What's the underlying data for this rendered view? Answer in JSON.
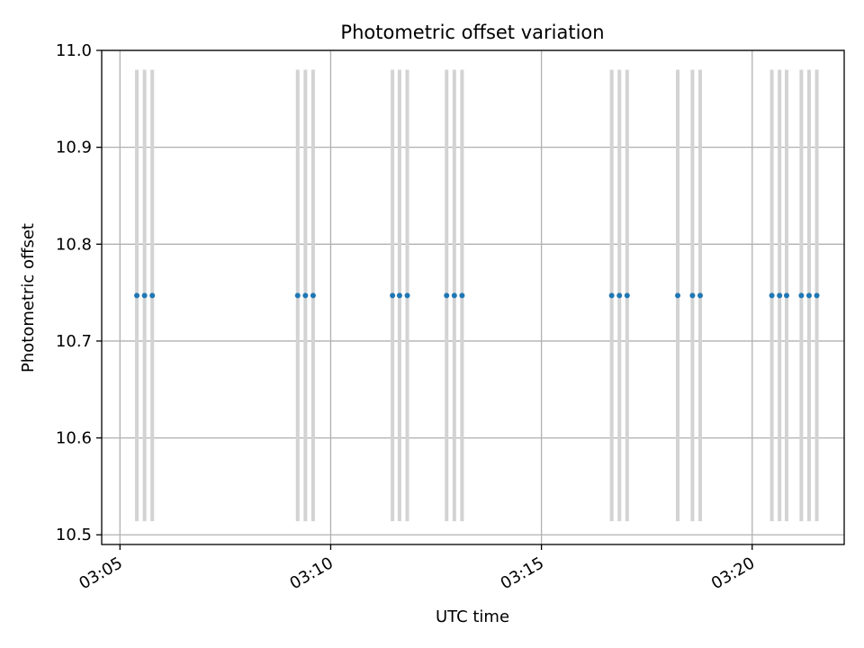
{
  "chart_data": {
    "type": "scatter",
    "title": "Photometric offset variation",
    "xlabel": "UTC time",
    "ylabel": "Photometric offset",
    "ylim": [
      10.49,
      11.0
    ],
    "xlim": [
      "03:04:34",
      "03:22:11"
    ],
    "grid": true,
    "x_ticks": [
      "03:05",
      "03:10",
      "03:15",
      "03:20"
    ],
    "y_ticks": [
      "10.5",
      "10.6",
      "10.7",
      "10.8",
      "10.9",
      "11.0"
    ],
    "marker_color": "#1f77b4",
    "band_color": "#d3d3d3",
    "series": [
      {
        "x": [
          "03:05:24",
          "03:05:35",
          "03:05:46",
          "03:09:13",
          "03:09:24",
          "03:09:35",
          "03:11:28",
          "03:11:38",
          "03:11:49",
          "03:12:45",
          "03:12:56",
          "03:13:07",
          "03:16:40",
          "03:16:51",
          "03:17:02",
          "03:18:14",
          "03:18:35",
          "03:18:46",
          "03:20:28",
          "03:20:39",
          "03:20:49",
          "03:21:10",
          "03:21:21",
          "03:21:32"
        ],
        "y": [
          10.747,
          10.747,
          10.747,
          10.747,
          10.747,
          10.747,
          10.747,
          10.747,
          10.747,
          10.747,
          10.747,
          10.747,
          10.747,
          10.747,
          10.747,
          10.747,
          10.747,
          10.747,
          10.747,
          10.747,
          10.747,
          10.747,
          10.747,
          10.747
        ],
        "yerr": 0.233
      }
    ]
  }
}
